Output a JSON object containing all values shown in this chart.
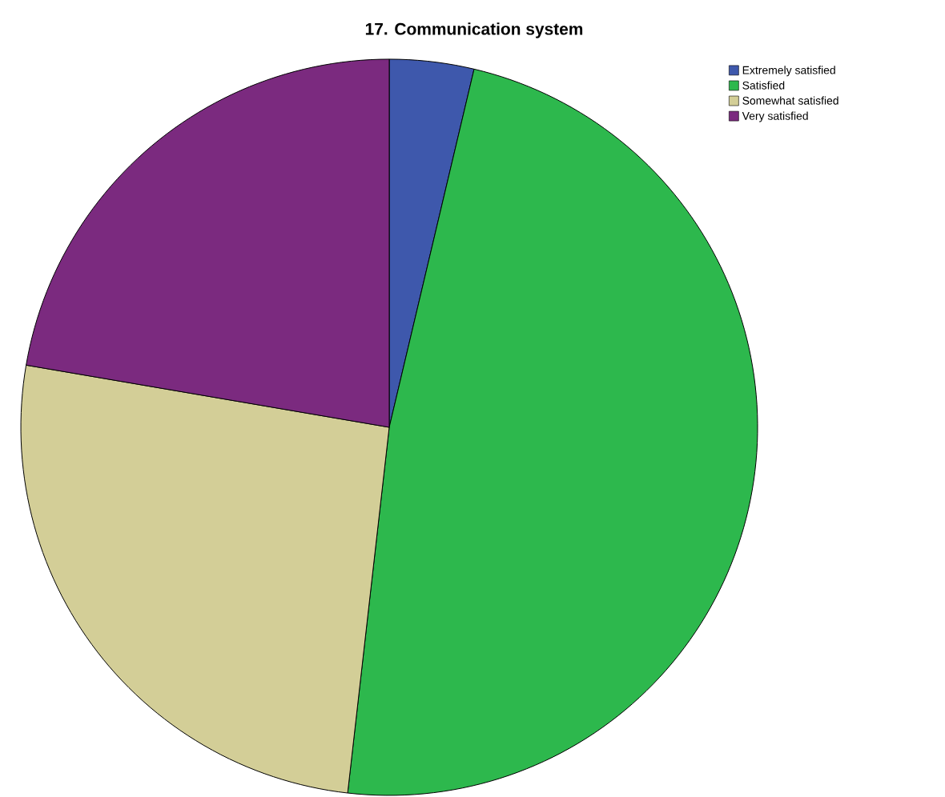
{
  "chart_data": {
    "type": "pie",
    "title": "17. Communication system",
    "categories": [
      "Extremely satisfied",
      "Satisfied",
      "Somewhat satisfied",
      "Very satisfied"
    ],
    "values": [
      3.7,
      48.1,
      25.9,
      22.3
    ],
    "colors": [
      "#3e58ac",
      "#2db84d",
      "#d3ce97",
      "#7b2a7f"
    ],
    "legend": "top right"
  }
}
